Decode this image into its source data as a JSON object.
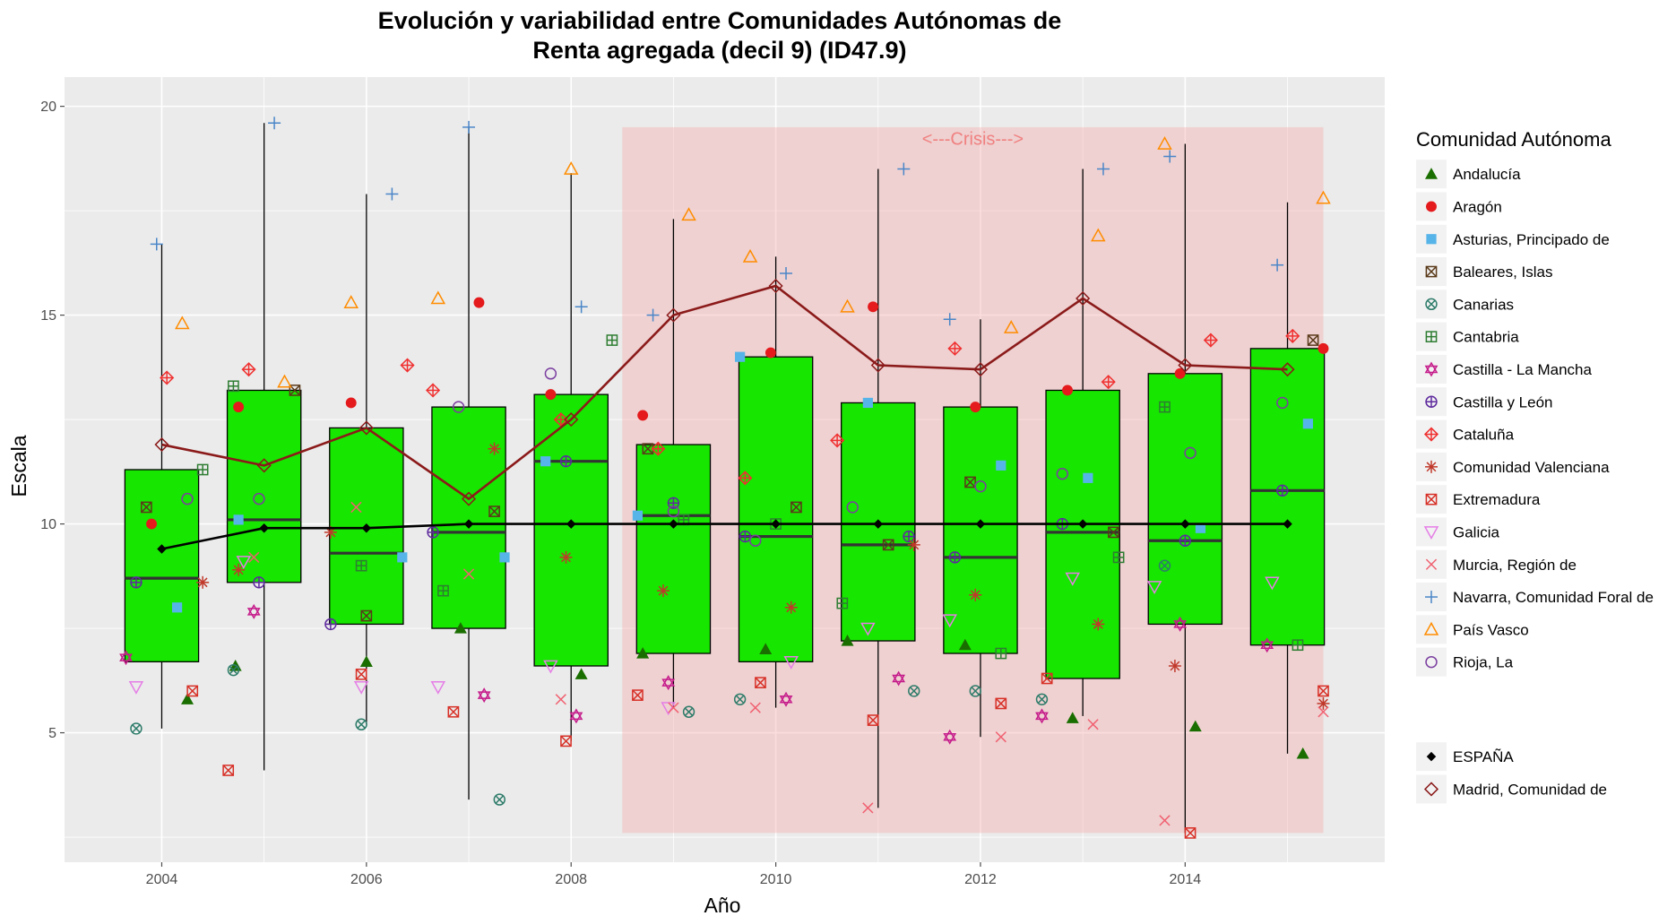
{
  "chart_data": {
    "type": "box",
    "title": "Evolución y variabilidad entre Comunidades Autónomas de",
    "subtitle": "Renta agregada (decil 9) (ID47.9)",
    "xlabel": "Año",
    "ylabel": "Escala",
    "xlim": [
      2003.05,
      2015.95
    ],
    "ylim": [
      1.9,
      20.7
    ],
    "xticks": [
      2004,
      2006,
      2008,
      2010,
      2012,
      2014
    ],
    "yticks": [
      5,
      10,
      15,
      20
    ],
    "grid": true,
    "legend_position": "right",
    "legend_title": "Comunidad Autónoma",
    "crisis": {
      "label": "<---Crisis--->",
      "x_start": 2008.5,
      "x_end": 2015.35,
      "y_bottom": 2.6,
      "y_top": 19.5,
      "color": "#f4a9a9"
    },
    "box_color": "#17e600",
    "boxes": [
      {
        "year": 2004,
        "whisker_low": 5.1,
        "q1": 6.7,
        "median": 8.7,
        "q3": 11.3,
        "whisker_high": 16.7
      },
      {
        "year": 2005,
        "whisker_low": 4.1,
        "q1": 8.6,
        "median": 10.1,
        "q3": 13.2,
        "whisker_high": 19.6
      },
      {
        "year": 2006,
        "whisker_low": 5.2,
        "q1": 7.6,
        "median": 9.3,
        "q3": 12.3,
        "whisker_high": 17.9
      },
      {
        "year": 2007,
        "whisker_low": 3.4,
        "q1": 7.5,
        "median": 9.8,
        "q3": 12.8,
        "whisker_high": 19.5
      },
      {
        "year": 2008,
        "whisker_low": 4.8,
        "q1": 6.6,
        "median": 11.5,
        "q3": 13.1,
        "whisker_high": 18.4
      },
      {
        "year": 2009,
        "whisker_low": 5.6,
        "q1": 6.9,
        "median": 10.2,
        "q3": 11.9,
        "whisker_high": 17.3
      },
      {
        "year": 2010,
        "whisker_low": 5.6,
        "q1": 6.7,
        "median": 9.7,
        "q3": 14.0,
        "whisker_high": 16.4
      },
      {
        "year": 2011,
        "whisker_low": 3.2,
        "q1": 7.2,
        "median": 9.5,
        "q3": 12.9,
        "whisker_high": 18.5
      },
      {
        "year": 2012,
        "whisker_low": 4.9,
        "q1": 6.9,
        "median": 9.2,
        "q3": 12.8,
        "whisker_high": 14.9
      },
      {
        "year": 2013,
        "whisker_low": 5.4,
        "q1": 6.3,
        "median": 9.8,
        "q3": 13.2,
        "whisker_high": 18.5
      },
      {
        "year": 2014,
        "whisker_low": 2.6,
        "q1": 7.6,
        "median": 9.6,
        "q3": 13.6,
        "whisker_high": 19.1
      },
      {
        "year": 2015,
        "whisker_low": 4.5,
        "q1": 7.1,
        "median": 10.8,
        "q3": 14.2,
        "whisker_high": 17.7
      }
    ],
    "lines": [
      {
        "name": "ESPAÑA",
        "color": "#000000",
        "shape": "diamond-filled",
        "x": [
          2004,
          2005,
          2006,
          2007,
          2008,
          2009,
          2010,
          2011,
          2012,
          2013,
          2014,
          2015
        ],
        "y": [
          9.4,
          9.9,
          9.9,
          10.0,
          10.0,
          10.0,
          10.0,
          10.0,
          10.0,
          10.0,
          10.0,
          10.0
        ]
      },
      {
        "name": "Madrid, Comunidad de",
        "color": "#8b1a1a",
        "shape": "diamond-open",
        "x": [
          2004,
          2005,
          2006,
          2007,
          2008,
          2009,
          2010,
          2011,
          2012,
          2013,
          2014,
          2015
        ],
        "y": [
          11.9,
          11.4,
          12.3,
          10.6,
          12.5,
          15.0,
          15.7,
          13.8,
          13.7,
          15.4,
          13.8,
          13.7
        ]
      }
    ],
    "series": [
      {
        "name": "Andalucía",
        "color": "#1a6e00",
        "shape": "triangle-filled",
        "x": [
          2004.25,
          2004.72,
          2006.0,
          2006.92,
          2008.1,
          2008.7,
          2009.9,
          2010.7,
          2011.85,
          2012.9,
          2014.1,
          2015.15
        ],
        "y": [
          5.8,
          6.6,
          6.7,
          7.5,
          6.4,
          6.9,
          7.0,
          7.2,
          7.1,
          5.35,
          5.15,
          4.5
        ]
      },
      {
        "name": "Aragón",
        "color": "#e41a1c",
        "shape": "circle-filled",
        "x": [
          2003.9,
          2004.75,
          2005.85,
          2007.1,
          2007.8,
          2008.7,
          2009.95,
          2010.95,
          2011.95,
          2012.85,
          2013.95,
          2015.35
        ],
        "y": [
          10.0,
          12.8,
          12.9,
          15.3,
          13.1,
          12.6,
          14.1,
          15.2,
          12.8,
          13.2,
          13.6,
          14.2
        ]
      },
      {
        "name": "Asturias, Principado de",
        "color": "#56b4e9",
        "shape": "square-filled",
        "x": [
          2004.15,
          2004.75,
          2006.35,
          2007.35,
          2007.75,
          2008.65,
          2009.65,
          2010.9,
          2012.2,
          2013.05,
          2014.15,
          2015.2
        ],
        "y": [
          8.0,
          10.1,
          9.2,
          9.2,
          11.5,
          10.2,
          14.0,
          12.9,
          11.4,
          11.1,
          9.9,
          12.4
        ]
      },
      {
        "name": "Baleares, Islas",
        "color": "#5a3a1a",
        "shape": "box-x",
        "x": [
          2003.85,
          2005.3,
          2006.0,
          2007.25,
          2008.75,
          2010.2,
          2011.1,
          2011.9,
          2013.3,
          2015.25
        ],
        "y": [
          10.4,
          13.2,
          7.8,
          10.3,
          11.8,
          10.4,
          9.5,
          11.0,
          9.8,
          14.4
        ]
      },
      {
        "name": "Canarias",
        "color": "#2e7c6a",
        "shape": "circle-x",
        "x": [
          2003.75,
          2004.7,
          2005.95,
          2007.3,
          2009.15,
          2009.65,
          2011.35,
          2011.95,
          2012.6,
          2013.8
        ],
        "y": [
          5.1,
          6.5,
          5.2,
          3.4,
          5.5,
          5.8,
          6.0,
          6.0,
          5.8,
          9.0
        ]
      },
      {
        "name": "Cantabria",
        "color": "#2e7d32",
        "shape": "square-plus",
        "x": [
          2004.4,
          2004.7,
          2005.95,
          2006.75,
          2008.4,
          2009.1,
          2010.0,
          2010.65,
          2012.2,
          2013.35,
          2013.8,
          2015.1
        ],
        "y": [
          11.3,
          13.3,
          9.0,
          8.4,
          14.4,
          10.1,
          10.0,
          8.1,
          6.9,
          9.2,
          12.8,
          7.1
        ]
      },
      {
        "name": "Castilla - La Mancha",
        "color": "#c51b8a",
        "shape": "star-david",
        "x": [
          2003.65,
          2004.9,
          2007.15,
          2008.05,
          2008.95,
          2010.1,
          2011.2,
          2011.7,
          2012.6,
          2013.95,
          2014.8
        ],
        "y": [
          6.8,
          7.9,
          5.9,
          5.4,
          6.2,
          5.8,
          6.3,
          4.9,
          5.4,
          7.6,
          7.1
        ]
      },
      {
        "name": "Castilla y León",
        "color": "#5e2a9e",
        "shape": "circle-plus",
        "x": [
          2003.75,
          2004.95,
          2005.65,
          2006.65,
          2007.95,
          2009.0,
          2009.7,
          2011.3,
          2011.75,
          2012.8,
          2014.0,
          2014.95
        ],
        "y": [
          8.6,
          8.6,
          7.6,
          9.8,
          11.5,
          10.5,
          9.7,
          9.7,
          9.2,
          10.0,
          9.6,
          10.8
        ]
      },
      {
        "name": "Cataluña",
        "color": "#f03030",
        "shape": "diamond-plus",
        "x": [
          2004.05,
          2004.85,
          2006.4,
          2006.65,
          2007.9,
          2008.85,
          2009.7,
          2010.6,
          2011.75,
          2013.25,
          2014.25,
          2015.05
        ],
        "y": [
          13.5,
          13.7,
          13.8,
          13.2,
          12.5,
          11.8,
          11.1,
          12.0,
          14.2,
          13.4,
          14.4,
          14.5
        ]
      },
      {
        "name": "Comunidad Valenciana",
        "color": "#c0392b",
        "shape": "asterisk",
        "x": [
          2004.4,
          2004.75,
          2005.65,
          2007.25,
          2007.95,
          2008.9,
          2010.15,
          2011.35,
          2011.95,
          2013.15,
          2013.9,
          2015.35
        ],
        "y": [
          8.6,
          8.9,
          9.8,
          11.8,
          9.2,
          8.4,
          8.0,
          9.5,
          8.3,
          7.6,
          6.6,
          5.7
        ]
      },
      {
        "name": "Extremadura",
        "color": "#d73027",
        "shape": "box-x",
        "x": [
          2004.3,
          2004.65,
          2005.95,
          2006.85,
          2007.95,
          2008.65,
          2009.85,
          2010.95,
          2012.2,
          2012.65,
          2014.05,
          2015.35
        ],
        "y": [
          6.0,
          4.1,
          6.4,
          5.5,
          4.8,
          5.9,
          6.2,
          5.3,
          5.7,
          6.3,
          2.6,
          6.0
        ]
      },
      {
        "name": "Galicia",
        "color": "#e57ee6",
        "shape": "triangle-down-open",
        "x": [
          2003.75,
          2004.8,
          2005.95,
          2006.7,
          2007.8,
          2008.95,
          2010.15,
          2010.9,
          2011.7,
          2012.9,
          2013.7,
          2014.85
        ],
        "y": [
          6.1,
          9.1,
          6.1,
          6.1,
          6.6,
          5.6,
          6.7,
          7.5,
          7.7,
          8.7,
          8.5,
          8.6
        ]
      },
      {
        "name": "Murcia, Región de",
        "color": "#f06070",
        "shape": "cross-x",
        "x": [
          2004.9,
          2005.9,
          2007.0,
          2007.9,
          2009.0,
          2009.8,
          2010.9,
          2012.2,
          2013.1,
          2013.8,
          2015.35
        ],
        "y": [
          9.2,
          10.4,
          8.8,
          5.8,
          5.6,
          5.6,
          3.2,
          4.9,
          5.2,
          2.9,
          5.5
        ]
      },
      {
        "name": "Navarra, Comunidad Foral de",
        "color": "#4a86c8",
        "shape": "plus",
        "x": [
          2003.95,
          2005.1,
          2006.25,
          2007.0,
          2008.1,
          2008.8,
          2010.1,
          2011.25,
          2011.7,
          2013.2,
          2013.85,
          2014.9
        ],
        "y": [
          16.7,
          19.6,
          17.9,
          19.5,
          15.2,
          15.0,
          16.0,
          18.5,
          14.9,
          18.5,
          18.8,
          16.2
        ]
      },
      {
        "name": "País Vasco",
        "color": "#ff8c00",
        "shape": "triangle-open",
        "x": [
          2004.2,
          2005.2,
          2005.85,
          2006.7,
          2008.0,
          2009.15,
          2009.75,
          2010.7,
          2012.3,
          2013.15,
          2013.8,
          2015.35
        ],
        "y": [
          14.8,
          13.4,
          15.3,
          15.4,
          18.5,
          17.4,
          16.4,
          15.2,
          14.7,
          16.9,
          19.1,
          17.8
        ]
      },
      {
        "name": "Rioja, La",
        "color": "#7b3fa0",
        "shape": "circle-open",
        "x": [
          2004.25,
          2004.95,
          2006.9,
          2007.8,
          2009.0,
          2009.8,
          2010.75,
          2012.0,
          2012.8,
          2014.05,
          2014.95
        ],
        "y": [
          10.6,
          10.6,
          12.8,
          13.6,
          10.3,
          9.6,
          10.4,
          10.9,
          11.2,
          11.7,
          12.9
        ]
      }
    ]
  }
}
